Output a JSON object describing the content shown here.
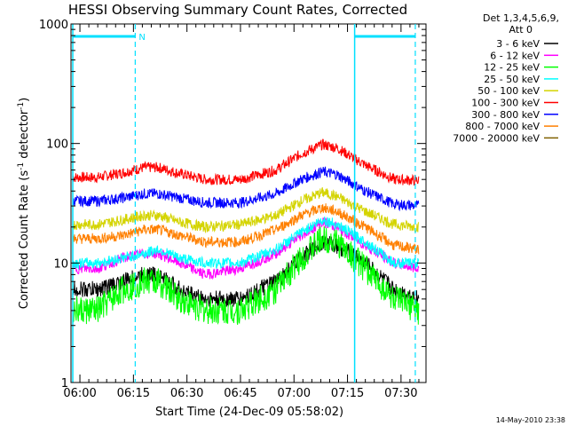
{
  "chart_data": {
    "type": "line",
    "title": "HESSI Observing Summary Count Rates, Corrected",
    "xlabel": "Start Time (24-Dec-09 05:58:02)",
    "ylabel_main": "Corrected Count Rate (s",
    "ylabel_sup1": "-1",
    "ylabel_mid": " detector",
    "ylabel_sup2": "-1",
    "ylabel_end": ")",
    "y_scale": "log",
    "ylim": [
      1,
      1000
    ],
    "y_ticks": [
      {
        "v": 1,
        "label": "1"
      },
      {
        "v": 10,
        "label": "10"
      },
      {
        "v": 100,
        "label": "100"
      },
      {
        "v": 1000,
        "label": "1000"
      }
    ],
    "xlim_minutes": [
      -2.5,
      97
    ],
    "x_ticks": [
      {
        "m": 0,
        "label": "06:00"
      },
      {
        "m": 15,
        "label": "06:15"
      },
      {
        "m": 30,
        "label": "06:30"
      },
      {
        "m": 45,
        "label": "06:45"
      },
      {
        "m": 60,
        "label": "07:00"
      },
      {
        "m": 75,
        "label": "07:15"
      },
      {
        "m": 90,
        "label": "07:30"
      }
    ],
    "legend_header": [
      "Det 1,3,4,5,6,9,",
      "Att 0"
    ],
    "legend_position": "right",
    "series": [
      {
        "name": "3 - 6 keV",
        "color": "#000000",
        "values": [
          6,
          6,
          7,
          8,
          8,
          6,
          5,
          5,
          7,
          11,
          15,
          14,
          10,
          6,
          5
        ]
      },
      {
        "name": "6 - 12 keV",
        "color": "#ff00ff",
        "values": [
          9,
          9,
          11,
          12,
          12,
          10,
          8,
          9,
          12,
          17,
          22,
          20,
          14,
          10,
          9
        ]
      },
      {
        "name": "12 - 25 keV",
        "color": "#00ff00",
        "values": [
          4,
          4,
          6,
          7,
          7,
          5,
          4,
          4,
          6,
          11,
          16,
          15,
          9,
          5,
          4
        ]
      },
      {
        "name": "25 - 50 keV",
        "color": "#00ffff",
        "values": [
          10,
          10,
          11,
          12,
          13,
          11,
          10,
          10,
          13,
          18,
          23,
          21,
          15,
          10,
          10
        ]
      },
      {
        "name": "50 - 100 keV",
        "color": "#d4d400",
        "values": [
          21,
          21,
          23,
          25,
          25,
          22,
          20,
          21,
          25,
          33,
          39,
          36,
          27,
          21,
          20
        ]
      },
      {
        "name": "100 - 300 keV",
        "color": "#ff0000",
        "values": [
          52,
          52,
          57,
          63,
          63,
          56,
          50,
          50,
          60,
          82,
          98,
          92,
          66,
          50,
          49
        ]
      },
      {
        "name": "300 - 800 keV",
        "color": "#0000ff",
        "values": [
          33,
          33,
          35,
          38,
          38,
          35,
          32,
          32,
          38,
          50,
          58,
          55,
          40,
          31,
          30
        ]
      },
      {
        "name": "800 - 7000 keV",
        "color": "#ff8000",
        "values": [
          16,
          16,
          17,
          19,
          19,
          17,
          15,
          15,
          19,
          25,
          29,
          27,
          20,
          14,
          13
        ]
      },
      {
        "name": "7000 - 20000 keV",
        "color": "#806000",
        "values": []
      }
    ],
    "x_minutes": [
      -2,
      5,
      12,
      18,
      22,
      28,
      35,
      45,
      55,
      62,
      68,
      72,
      80,
      88,
      95
    ],
    "markers": {
      "color": "#00e0ff",
      "solid_lines_minutes": [
        -2,
        77
      ],
      "dashed_lines_minutes": [
        15.5,
        94
      ],
      "bars": [
        {
          "from": -2,
          "to": 15.5,
          "label": "N"
        },
        {
          "from": 77,
          "to": 94,
          "label": ""
        }
      ]
    },
    "grid": false
  },
  "timestamp": "14-May-2010 23:38"
}
